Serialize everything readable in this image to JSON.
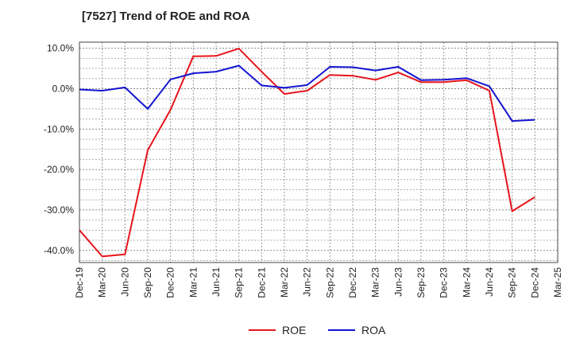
{
  "chart_data": {
    "type": "line",
    "title": "[7527]  Trend of ROE and ROA",
    "xlabel": "",
    "ylabel": "",
    "x": [
      "Dec-19",
      "Mar-20",
      "Jun-20",
      "Sep-20",
      "Dec-20",
      "Mar-21",
      "Jun-21",
      "Sep-21",
      "Dec-21",
      "Mar-22",
      "Jun-22",
      "Sep-22",
      "Dec-22",
      "Mar-23",
      "Jun-23",
      "Sep-23",
      "Dec-23",
      "Mar-24",
      "Jun-24",
      "Sep-24",
      "Dec-24",
      "Mar-25"
    ],
    "ylim": [
      -43,
      11.5
    ],
    "yticks": [
      10,
      0,
      -10,
      -20,
      -30,
      -40
    ],
    "ytick_labels": [
      "10.0%",
      "0.0%",
      "-10.0%",
      "-20.0%",
      "-30.0%",
      "-40.0%"
    ],
    "grid": true,
    "legend": "bottom-center",
    "series": [
      {
        "name": "ROE",
        "color": "#e8141b",
        "values": [
          -35.0,
          -41.5,
          -41.0,
          -15.2,
          -5.2,
          8.0,
          8.1,
          9.9,
          4.2,
          -1.3,
          -0.5,
          3.4,
          3.2,
          2.2,
          4.0,
          1.6,
          1.6,
          2.1,
          -0.5,
          -30.3,
          -26.8,
          null
        ]
      },
      {
        "name": "ROA",
        "color": "#1414d2",
        "values": [
          -0.2,
          -0.5,
          0.3,
          -5.0,
          2.3,
          3.8,
          4.2,
          5.7,
          0.8,
          0.2,
          0.9,
          5.4,
          5.3,
          4.5,
          5.4,
          2.1,
          2.2,
          2.6,
          0.6,
          -8.0,
          -7.7,
          null
        ]
      }
    ]
  }
}
